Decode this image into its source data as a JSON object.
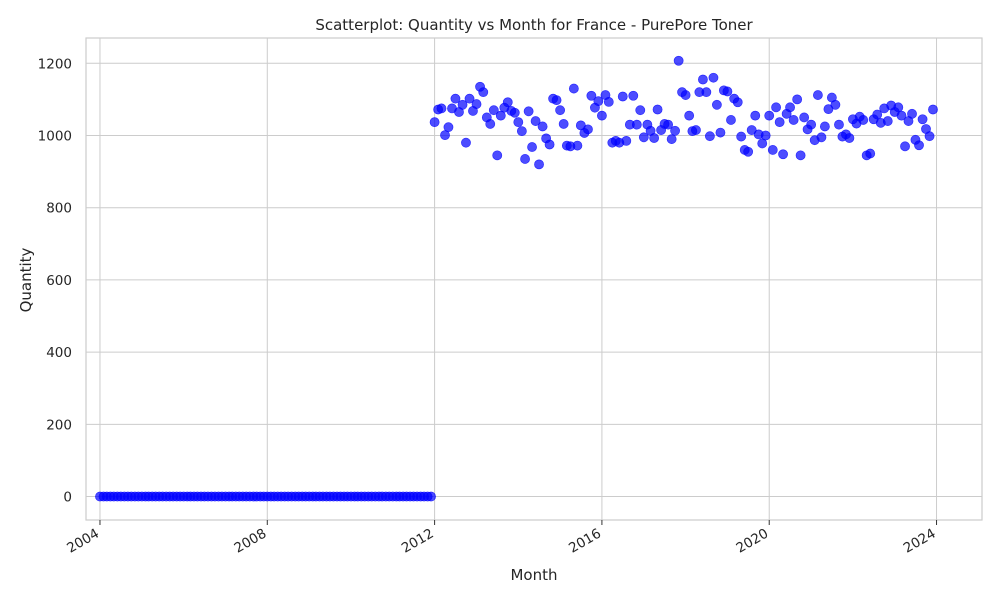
{
  "chart_data": {
    "type": "scatter",
    "title": "Scatterplot: Quantity vs Month for France - PurePore Toner",
    "xlabel": "Month",
    "ylabel": "Quantity",
    "x_scale": "date",
    "xlim": [
      "2003-09-01",
      "2025-02-01"
    ],
    "ylim": [
      -65,
      1270
    ],
    "x_ticks": [
      "2004",
      "2008",
      "2012",
      "2016",
      "2020",
      "2024"
    ],
    "y_ticks": [
      0,
      200,
      400,
      600,
      800,
      1000,
      1200
    ],
    "grid": true,
    "legend": "none",
    "colors": {
      "points": "#0000ff",
      "grid": "#cccccc",
      "background": "#ffffff"
    },
    "x": [
      "2004-01",
      "2004-02",
      "2004-03",
      "2004-04",
      "2004-05",
      "2004-06",
      "2004-07",
      "2004-08",
      "2004-09",
      "2004-10",
      "2004-11",
      "2004-12",
      "2005-01",
      "2005-02",
      "2005-03",
      "2005-04",
      "2005-05",
      "2005-06",
      "2005-07",
      "2005-08",
      "2005-09",
      "2005-10",
      "2005-11",
      "2005-12",
      "2006-01",
      "2006-02",
      "2006-03",
      "2006-04",
      "2006-05",
      "2006-06",
      "2006-07",
      "2006-08",
      "2006-09",
      "2006-10",
      "2006-11",
      "2006-12",
      "2007-01",
      "2007-02",
      "2007-03",
      "2007-04",
      "2007-05",
      "2007-06",
      "2007-07",
      "2007-08",
      "2007-09",
      "2007-10",
      "2007-11",
      "2007-12",
      "2008-01",
      "2008-02",
      "2008-03",
      "2008-04",
      "2008-05",
      "2008-06",
      "2008-07",
      "2008-08",
      "2008-09",
      "2008-10",
      "2008-11",
      "2008-12",
      "2009-01",
      "2009-02",
      "2009-03",
      "2009-04",
      "2009-05",
      "2009-06",
      "2009-07",
      "2009-08",
      "2009-09",
      "2009-10",
      "2009-11",
      "2009-12",
      "2010-01",
      "2010-02",
      "2010-03",
      "2010-04",
      "2010-05",
      "2010-06",
      "2010-07",
      "2010-08",
      "2010-09",
      "2010-10",
      "2010-11",
      "2010-12",
      "2011-01",
      "2011-02",
      "2011-03",
      "2011-04",
      "2011-05",
      "2011-06",
      "2011-07",
      "2011-08",
      "2011-09",
      "2011-10",
      "2011-11",
      "2011-12",
      "2012-01",
      "2012-02",
      "2012-03",
      "2012-04",
      "2012-05",
      "2012-06",
      "2012-07",
      "2012-08",
      "2012-09",
      "2012-10",
      "2012-11",
      "2012-12",
      "2013-01",
      "2013-02",
      "2013-03",
      "2013-04",
      "2013-05",
      "2013-06",
      "2013-07",
      "2013-08",
      "2013-09",
      "2013-10",
      "2013-11",
      "2013-12",
      "2014-01",
      "2014-02",
      "2014-03",
      "2014-04",
      "2014-05",
      "2014-06",
      "2014-07",
      "2014-08",
      "2014-09",
      "2014-10",
      "2014-11",
      "2014-12",
      "2015-01",
      "2015-02",
      "2015-03",
      "2015-04",
      "2015-05",
      "2015-06",
      "2015-07",
      "2015-08",
      "2015-09",
      "2015-10",
      "2015-11",
      "2015-12",
      "2016-01",
      "2016-02",
      "2016-03",
      "2016-04",
      "2016-05",
      "2016-06",
      "2016-07",
      "2016-08",
      "2016-09",
      "2016-10",
      "2016-11",
      "2016-12",
      "2017-01",
      "2017-02",
      "2017-03",
      "2017-04",
      "2017-05",
      "2017-06",
      "2017-07",
      "2017-08",
      "2017-09",
      "2017-10",
      "2017-11",
      "2017-12",
      "2018-01",
      "2018-02",
      "2018-03",
      "2018-04",
      "2018-05",
      "2018-06",
      "2018-07",
      "2018-08",
      "2018-09",
      "2018-10",
      "2018-11",
      "2018-12",
      "2019-01",
      "2019-02",
      "2019-03",
      "2019-04",
      "2019-05",
      "2019-06",
      "2019-07",
      "2019-08",
      "2019-09",
      "2019-10",
      "2019-11",
      "2019-12",
      "2020-01",
      "2020-02",
      "2020-03",
      "2020-04",
      "2020-05",
      "2020-06",
      "2020-07",
      "2020-08",
      "2020-09",
      "2020-10",
      "2020-11",
      "2020-12",
      "2021-01",
      "2021-02",
      "2021-03",
      "2021-04",
      "2021-05",
      "2021-06",
      "2021-07",
      "2021-08",
      "2021-09",
      "2021-10",
      "2021-11",
      "2021-12",
      "2022-01",
      "2022-02",
      "2022-03",
      "2022-04",
      "2022-05",
      "2022-06",
      "2022-07",
      "2022-08",
      "2022-09",
      "2022-10",
      "2022-11",
      "2022-12",
      "2023-01",
      "2023-02",
      "2023-03",
      "2023-04",
      "2023-05",
      "2023-06",
      "2023-07",
      "2023-08",
      "2023-09",
      "2023-10",
      "2023-11",
      "2023-12"
    ],
    "y": [
      0,
      0,
      0,
      0,
      0,
      0,
      0,
      0,
      0,
      0,
      0,
      0,
      0,
      0,
      0,
      0,
      0,
      0,
      0,
      0,
      0,
      0,
      0,
      0,
      0,
      0,
      0,
      0,
      0,
      0,
      0,
      0,
      0,
      0,
      0,
      0,
      0,
      0,
      0,
      0,
      0,
      0,
      0,
      0,
      0,
      0,
      0,
      0,
      0,
      0,
      0,
      0,
      0,
      0,
      0,
      0,
      0,
      0,
      0,
      0,
      0,
      0,
      0,
      0,
      0,
      0,
      0,
      0,
      0,
      0,
      0,
      0,
      0,
      0,
      0,
      0,
      0,
      0,
      0,
      0,
      0,
      0,
      0,
      0,
      0,
      0,
      0,
      0,
      0,
      0,
      0,
      0,
      0,
      0,
      0,
      0,
      1037,
      1072,
      1075,
      1001,
      1023,
      1075,
      1102,
      1065,
      1085,
      980,
      1102,
      1068,
      1087,
      1135,
      1120,
      1050,
      1032,
      1070,
      945,
      1055,
      1077,
      1092,
      1068,
      1063,
      1037,
      1012,
      935,
      1067,
      968,
      1040,
      920,
      1025,
      992,
      975,
      1102,
      1098,
      1070,
      1032,
      972,
      970,
      1130,
      972,
      1028,
      1007,
      1017,
      1110,
      1077,
      1095,
      1055,
      1112,
      1093,
      980,
      985,
      980,
      1108,
      985,
      1030,
      1110,
      1030,
      1070,
      995,
      1030,
      1013,
      993,
      1072,
      1015,
      1032,
      1030,
      990,
      1013,
      1207,
      1120,
      1112,
      1055,
      1012,
      1015,
      1120,
      1155,
      1120,
      998,
      1160,
      1085,
      1008,
      1125,
      1122,
      1043,
      1102,
      1092,
      997,
      960,
      955,
      1015,
      1055,
      1003,
      978,
      1000,
      1055,
      960,
      1078,
      1037,
      948,
      1060,
      1078,
      1043,
      1100,
      945,
      1050,
      1017,
      1030,
      987,
      1112,
      995,
      1025,
      1073,
      1105,
      1085,
      1030,
      997,
      1003,
      993,
      1045,
      1033,
      1052,
      1043,
      945,
      950,
      1045,
      1058,
      1035,
      1075,
      1040,
      1083,
      1065,
      1078,
      1055,
      970,
      1040,
      1060,
      988,
      973,
      1045,
      1018,
      998,
      1072
    ]
  }
}
